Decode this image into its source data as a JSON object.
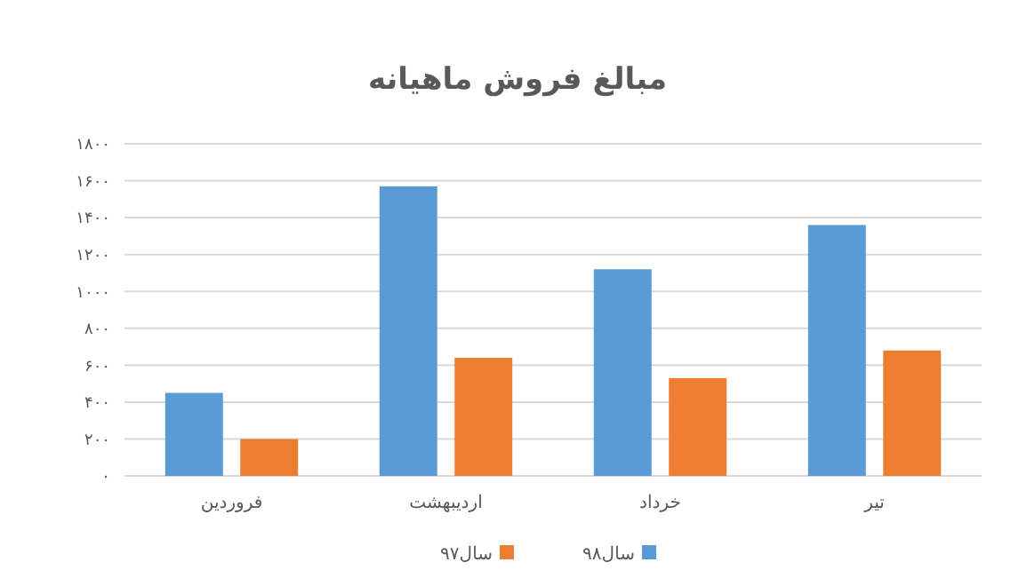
{
  "chart_data": {
    "type": "bar",
    "title": "مبالغ فروش ماهیانه",
    "categories": [
      "فروردین",
      "اردیبهشت",
      "خرداد",
      "تیر"
    ],
    "series": [
      {
        "name": "سال۹۸",
        "color": "#5b9bd5",
        "values": [
          450,
          1570,
          1120,
          1360
        ]
      },
      {
        "name": "سال۹۷",
        "color": "#ed7d31",
        "values": [
          200,
          640,
          530,
          680
        ]
      }
    ],
    "ylim": [
      0,
      1800
    ],
    "yticks": [
      {
        "value": 0,
        "label": "۰"
      },
      {
        "value": 200,
        "label": "۲۰۰"
      },
      {
        "value": 400,
        "label": "۴۰۰"
      },
      {
        "value": 600,
        "label": "۶۰۰"
      },
      {
        "value": 800,
        "label": "۸۰۰"
      },
      {
        "value": 1000,
        "label": "۱۰۰۰"
      },
      {
        "value": 1200,
        "label": "۱۲۰۰"
      },
      {
        "value": 1400,
        "label": "۱۴۰۰"
      },
      {
        "value": 1600,
        "label": "۱۶۰۰"
      },
      {
        "value": 1800,
        "label": "۱۸۰۰"
      }
    ],
    "grid": "y",
    "legend": "bottom"
  }
}
